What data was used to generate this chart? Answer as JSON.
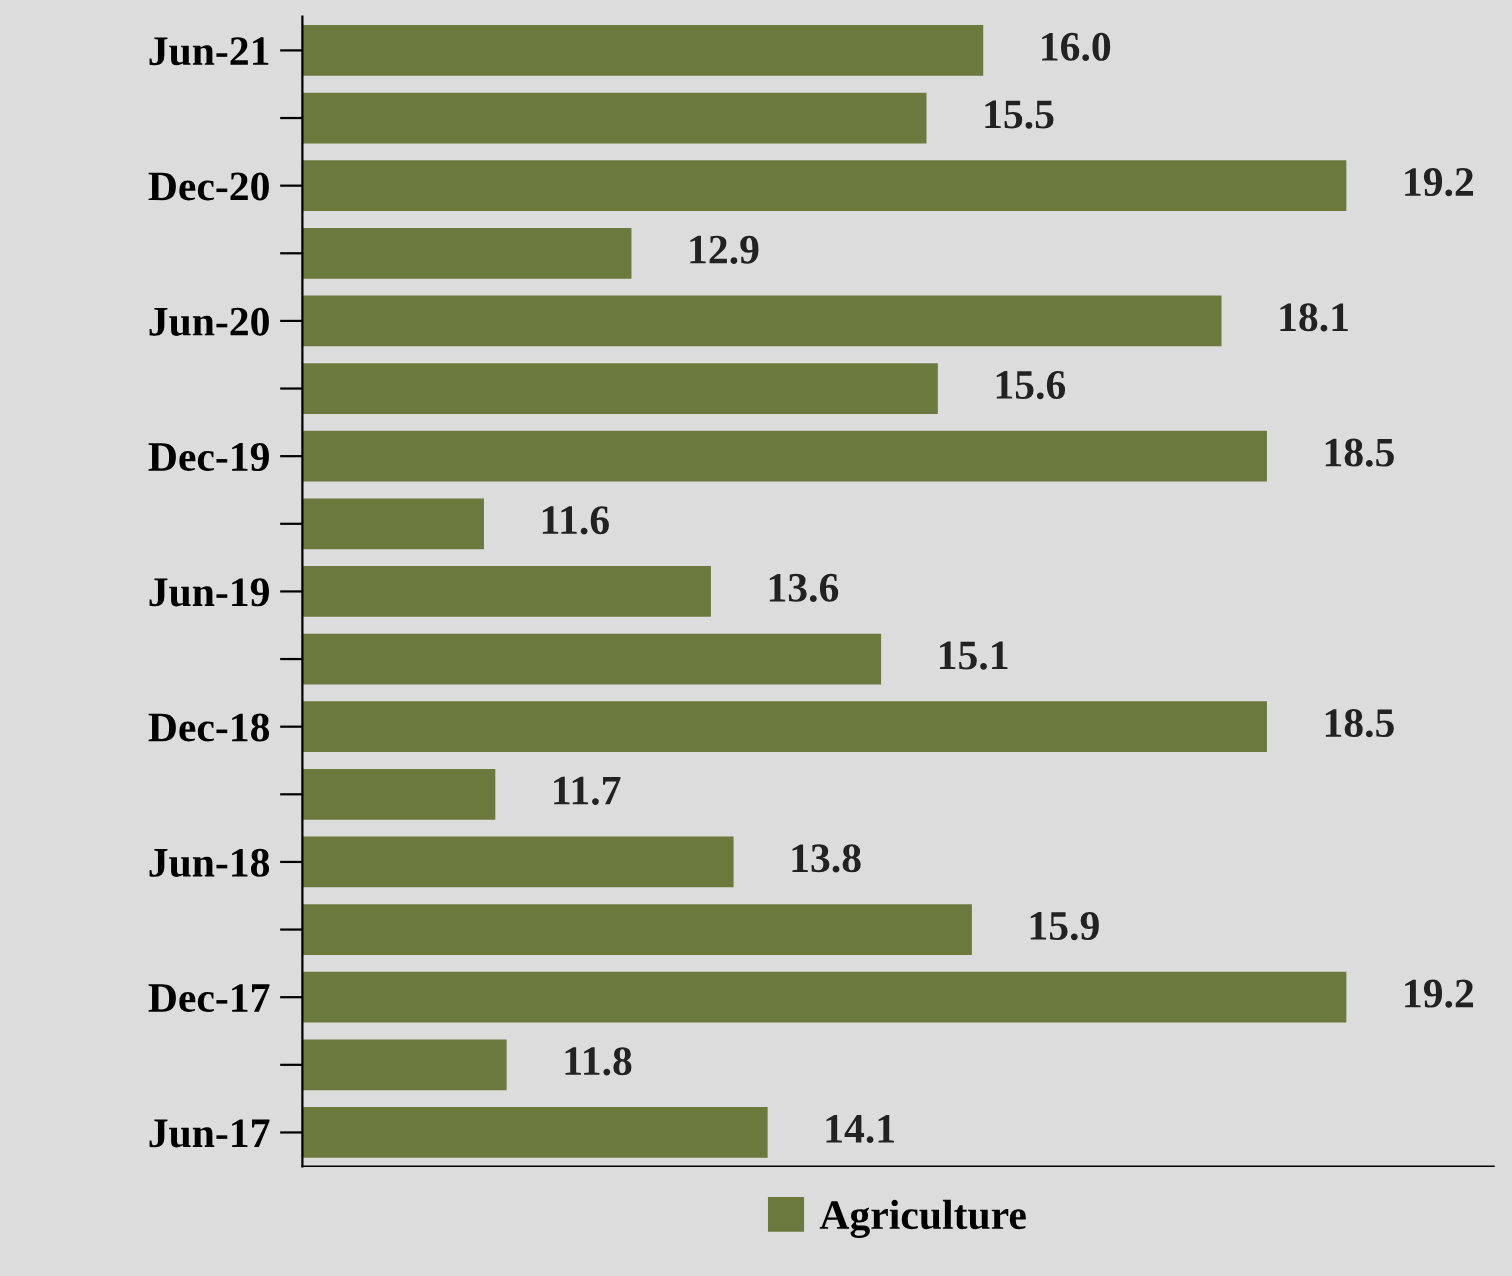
{
  "chart_data": {
    "type": "bar",
    "orientation": "horizontal",
    "categories": [
      "Jun-21",
      null,
      "Dec-20",
      null,
      "Jun-20",
      null,
      "Dec-19",
      null,
      "Jun-19",
      null,
      "Dec-18",
      null,
      "Jun-18",
      null,
      "Dec-17",
      null,
      "Jun-17"
    ],
    "series": [
      {
        "name": "Agriculture",
        "color": "#6b793d",
        "values": [
          16.0,
          15.5,
          19.2,
          12.9,
          18.1,
          15.6,
          18.5,
          11.6,
          13.6,
          15.1,
          18.5,
          11.7,
          13.8,
          15.9,
          19.2,
          11.8,
          14.1
        ],
        "value_labels": [
          "16.0",
          "15.5",
          "19.2",
          "12.9",
          "18.1",
          "15.6",
          "18.5",
          "11.6",
          "13.6",
          "15.1",
          "18.5",
          "11.7",
          "13.8",
          "15.9",
          "19.2",
          "11.8",
          "14.1"
        ]
      }
    ],
    "xlim": [
      10,
      20.5
    ],
    "tick_labels": "y",
    "grid": false,
    "legend": "bottom"
  }
}
